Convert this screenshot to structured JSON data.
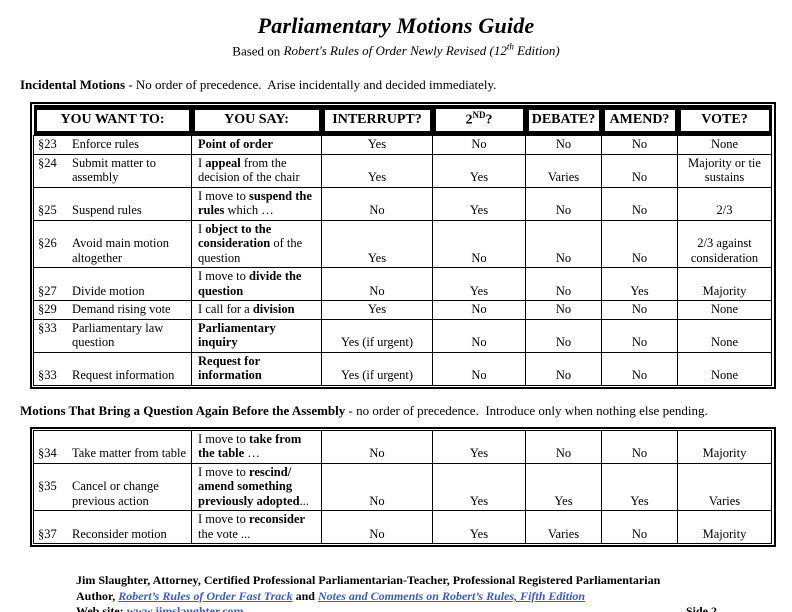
{
  "page": {
    "title": "Parliamentary Motions Guide",
    "subtitle_prefix": "Based on ",
    "subtitle_italic": "Robert's Rules of Order Newly Revised (12",
    "subtitle_sup": "th",
    "subtitle_suffix": " Edition)"
  },
  "theme": {
    "link_color": "#3a5cc4"
  },
  "section1": {
    "heading_bold": "Incidental Motions",
    "heading_rest": " - No order of precedence.  Arise incidentally and decided immediately."
  },
  "section2": {
    "heading_bold": "Motions That Bring a Question Again Before the Assembly",
    "heading_rest": " - no order of precedence.  Introduce only when nothing else pending."
  },
  "table1": {
    "headers": [
      {
        "text": "YOU WANT TO:"
      },
      {
        "text": "YOU SAY:"
      },
      {
        "text": "INTERRUPT?"
      },
      {
        "text": "2",
        "sup": "ND",
        "after": "?"
      },
      {
        "text": "DEBATE?"
      },
      {
        "text": "AMEND?"
      },
      {
        "text": "VOTE?"
      }
    ],
    "rows": [
      {
        "sec": "§23",
        "want": "Enforce rules",
        "say": [
          [
            "Point of order",
            1
          ]
        ],
        "cols": [
          "Yes",
          "No",
          "No",
          "No",
          "None"
        ]
      },
      {
        "sec": "§24",
        "want": "Submit matter to assembly",
        "say": [
          [
            "I ",
            0
          ],
          [
            "appeal",
            1
          ],
          [
            " from the decision of the chair",
            0
          ]
        ],
        "cols": [
          "Yes",
          "Yes",
          "Varies",
          "No",
          "Majority or tie sustains"
        ]
      },
      {
        "sec": "§25",
        "want": "Suspend rules",
        "say": [
          [
            "I move to ",
            0
          ],
          [
            "suspend the rules",
            1
          ],
          [
            " which …",
            0
          ]
        ],
        "cols": [
          "No",
          "Yes",
          "No",
          "No",
          "2/3"
        ]
      },
      {
        "sec": "§26",
        "want": "Avoid main motion altogether",
        "say": [
          [
            "I ",
            0
          ],
          [
            "object to the consideration",
            1
          ],
          [
            " of the question",
            0
          ]
        ],
        "cols": [
          "Yes",
          "No",
          "No",
          "No",
          "2/3 against consideration"
        ]
      },
      {
        "sec": "§27",
        "want": "Divide motion",
        "say": [
          [
            "I move to ",
            0
          ],
          [
            "divide the question",
            1
          ]
        ],
        "cols": [
          "No",
          "Yes",
          "No",
          "Yes",
          "Majority"
        ]
      },
      {
        "sec": "§29",
        "want": "Demand rising vote",
        "say": [
          [
            "I call for a ",
            0
          ],
          [
            "division",
            1
          ]
        ],
        "cols": [
          "Yes",
          "No",
          "No",
          "No",
          "None"
        ]
      },
      {
        "sec": "§33",
        "want": "Parliamentary law question",
        "say": [
          [
            "Parliamentary inquiry",
            1
          ]
        ],
        "cols": [
          "Yes (if urgent)",
          "No",
          "No",
          "No",
          "None"
        ]
      },
      {
        "sec": "§33",
        "want": "Request information",
        "say": [
          [
            "Request for information",
            1
          ]
        ],
        "cols": [
          "Yes (if urgent)",
          "No",
          "No",
          "No",
          "None"
        ]
      }
    ]
  },
  "table2": {
    "rows": [
      {
        "sec": "§34",
        "want": "Take matter from table",
        "say": [
          [
            "I move to ",
            0
          ],
          [
            "take from the table",
            1
          ],
          [
            " …",
            0
          ]
        ],
        "cols": [
          "No",
          "Yes",
          "No",
          "No",
          "Majority"
        ]
      },
      {
        "sec": "§35",
        "want": "Cancel or change previous action",
        "say": [
          [
            "I move to ",
            0
          ],
          [
            "rescind/ amend something previously adopted",
            1
          ],
          [
            "...",
            0
          ]
        ],
        "cols": [
          "No",
          "Yes",
          "Yes",
          "Yes",
          "Varies"
        ]
      },
      {
        "sec": "§37",
        "want": "Reconsider motion",
        "say": [
          [
            "I move to ",
            0
          ],
          [
            "reconsider",
            1
          ],
          [
            " the vote ...",
            0
          ]
        ],
        "cols": [
          "No",
          "Yes",
          "Varies",
          "No",
          "Majority"
        ]
      }
    ]
  },
  "footer": {
    "line1": "Jim Slaughter, Attorney, Certified Professional Parliamentarian-Teacher, Professional Registered Parliamentarian",
    "author_prefix": "Author, ",
    "book1": "Robert’s Rules of Order Fast Track",
    "and_text": " and ",
    "book2": "Notes and Comments on Robert’s Rules, Fifth Edition",
    "website_label": "Web site: ",
    "website_url": "www.jimslaughter.com",
    "side": "Side 2"
  }
}
